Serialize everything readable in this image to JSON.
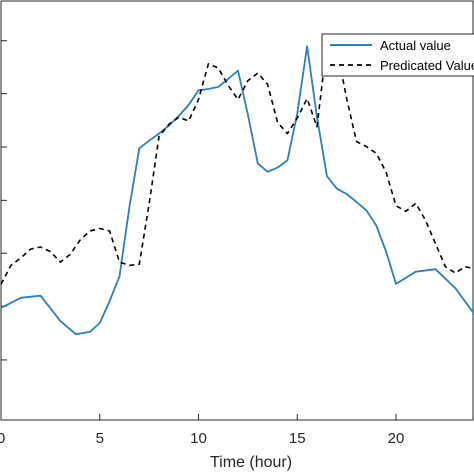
{
  "chart_data": {
    "type": "line",
    "title": "",
    "xlabel": "Time (hour)",
    "ylabel": "",
    "xlim": [
      0,
      24
    ],
    "ylim": [
      0,
      1
    ],
    "grid": false,
    "legend_position": "top-right",
    "x_ticks": [
      0,
      5,
      10,
      15,
      20
    ],
    "x_tick_labels": [
      "0",
      "5",
      "10",
      "15",
      "20"
    ],
    "y_ticks": [
      0.143,
      0.271,
      0.397,
      0.523,
      0.65,
      0.777,
      0.903
    ],
    "series": [
      {
        "name": "Actual value",
        "color": "#2c7fb8",
        "style": "solid",
        "x": [
          0,
          1,
          2,
          3,
          3.8,
          4.5,
          5,
          5.5,
          6,
          6.5,
          7,
          7.5,
          8,
          8.5,
          9,
          9.5,
          10,
          10.5,
          11,
          11.5,
          12,
          12.5,
          13,
          13.5,
          14,
          14.5,
          15,
          15.5,
          16,
          16.5,
          17,
          17.5,
          18,
          18.5,
          19,
          19.5,
          20,
          21,
          22,
          23,
          24
        ],
        "y": [
          0.267,
          0.291,
          0.296,
          0.236,
          0.204,
          0.21,
          0.231,
          0.283,
          0.342,
          0.507,
          0.647,
          0.665,
          0.682,
          0.701,
          0.724,
          0.75,
          0.785,
          0.788,
          0.793,
          0.812,
          0.832,
          0.727,
          0.611,
          0.591,
          0.601,
          0.618,
          0.73,
          0.89,
          0.721,
          0.581,
          0.551,
          0.538,
          0.519,
          0.499,
          0.463,
          0.401,
          0.324,
          0.353,
          0.359,
          0.314,
          0.25
        ]
      },
      {
        "name": "Predicated Value",
        "color": "#000000",
        "style": "dashed",
        "x": [
          0,
          0.5,
          1,
          1.5,
          2,
          2.5,
          3,
          3.5,
          4,
          4.5,
          5,
          5.5,
          6,
          6.5,
          7,
          7.5,
          8,
          8.5,
          9,
          9.5,
          10,
          10.5,
          11,
          11.5,
          12,
          12.5,
          13,
          13.5,
          14,
          14.5,
          15,
          15.5,
          16,
          16.5,
          17,
          17.5,
          18,
          18.5,
          19,
          19.5,
          20,
          20.5,
          21,
          21.5,
          22,
          22.5,
          23,
          23.5,
          24
        ],
        "y": [
          0.323,
          0.368,
          0.386,
          0.407,
          0.412,
          0.401,
          0.376,
          0.394,
          0.428,
          0.45,
          0.456,
          0.45,
          0.376,
          0.368,
          0.371,
          0.514,
          0.675,
          0.704,
          0.721,
          0.712,
          0.763,
          0.848,
          0.838,
          0.797,
          0.763,
          0.808,
          0.826,
          0.799,
          0.709,
          0.682,
          0.719,
          0.765,
          0.698,
          0.896,
          0.884,
          0.766,
          0.663,
          0.651,
          0.635,
          0.59,
          0.51,
          0.497,
          0.516,
          0.475,
          0.42,
          0.365,
          0.35,
          0.365,
          0.36
        ]
      }
    ]
  }
}
